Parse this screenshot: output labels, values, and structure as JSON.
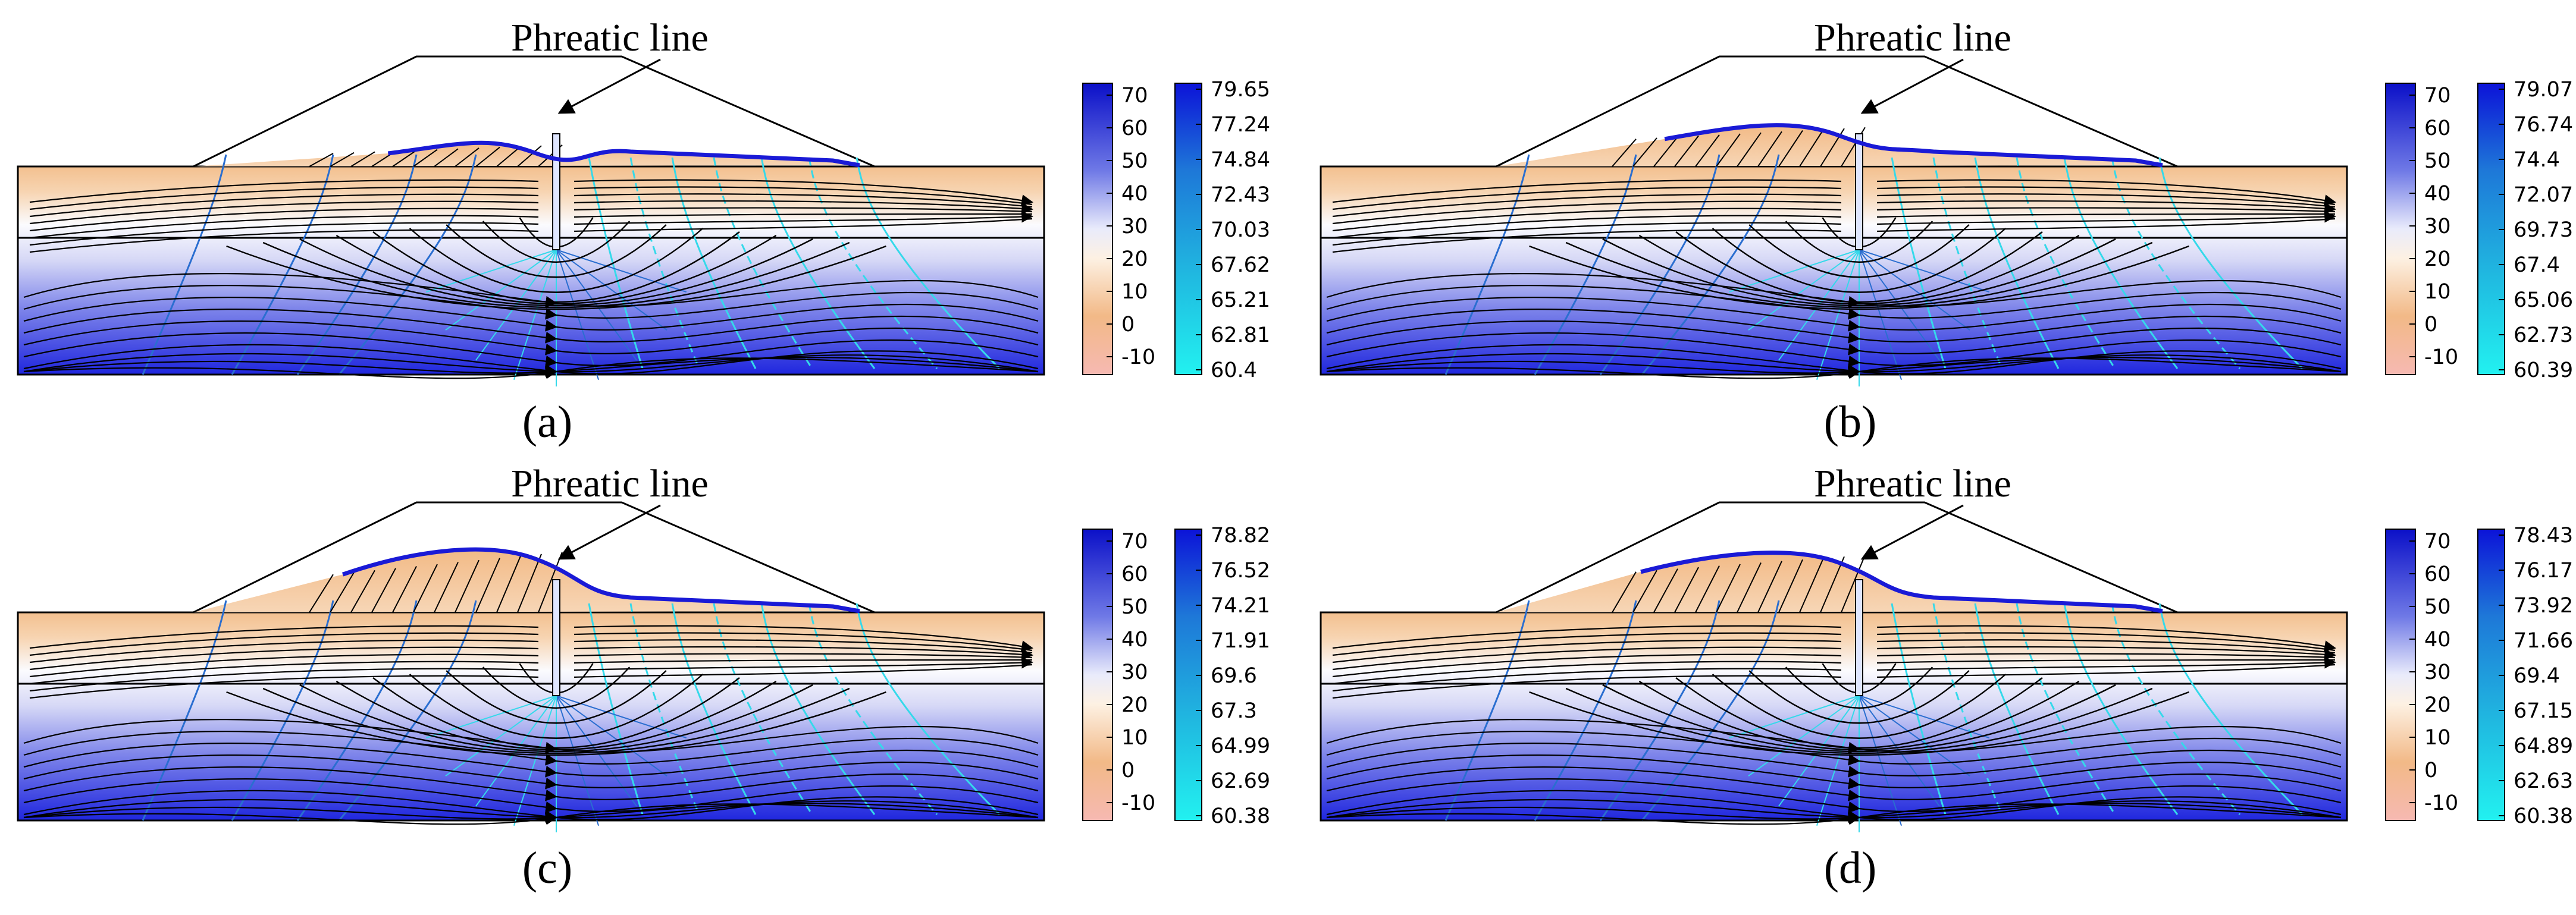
{
  "figure": {
    "colorbar_left_ticks": [
      "70",
      "60",
      "50",
      "40",
      "30",
      "20",
      "10",
      "0",
      "-10"
    ],
    "panels": [
      {
        "id": "a",
        "caption": "(a)",
        "annotation": "Phreatic line",
        "right_ticks": [
          "79.65",
          "77.24",
          "74.84",
          "72.43",
          "70.03",
          "67.62",
          "65.21",
          "62.81",
          "60.4"
        ],
        "phreatic_left_level": 0.2,
        "phreatic_peak": 0.25
      },
      {
        "id": "b",
        "caption": "(b)",
        "annotation": "Phreatic line",
        "right_ticks": [
          "79.07",
          "76.74",
          "74.4",
          "72.07",
          "69.73",
          "67.4",
          "65.06",
          "62.73",
          "60.39"
        ],
        "phreatic_left_level": 0.42,
        "phreatic_peak": 0.45
      },
      {
        "id": "c",
        "caption": "(c)",
        "annotation": "Phreatic line",
        "right_ticks": [
          "78.82",
          "76.52",
          "74.21",
          "71.91",
          "69.6",
          "67.3",
          "64.99",
          "62.69",
          "60.38"
        ],
        "phreatic_left_level": 0.58,
        "phreatic_peak": 0.7
      },
      {
        "id": "d",
        "caption": "(d)",
        "annotation": "Phreatic line",
        "right_ticks": [
          "78.43",
          "76.17",
          "73.92",
          "71.66",
          "69.4",
          "67.15",
          "64.89",
          "62.63",
          "60.38"
        ],
        "phreatic_left_level": 0.62,
        "phreatic_peak": 0.66
      }
    ]
  },
  "colors": {
    "phreatic": "#1a1ad6",
    "streamline": "#000000",
    "equipotential_left": "#2a6ed0",
    "equipotential_right": "#35d9ea"
  }
}
